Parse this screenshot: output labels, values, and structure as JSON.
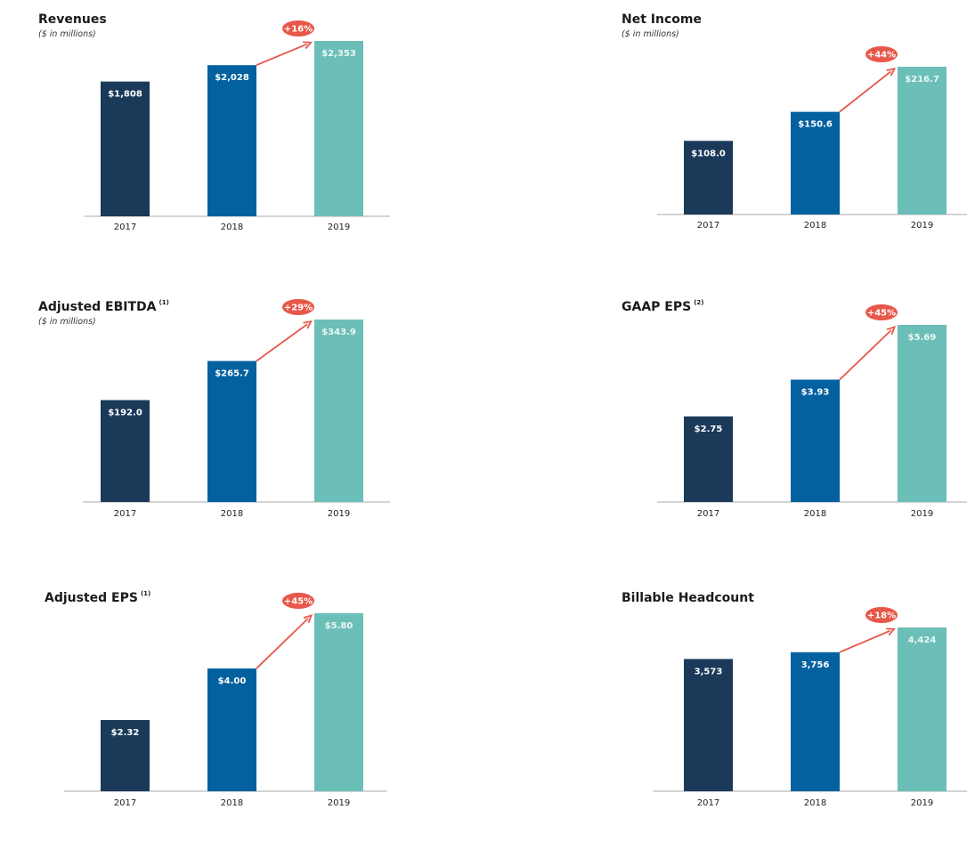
{
  "colors": {
    "y2017": "#1b3a5a",
    "y2018": "#03619f",
    "y2019": "#6cbfb8",
    "arrow": "#e8584a",
    "axis": "#a9a9a9"
  },
  "chart_data": [
    {
      "type": "bar",
      "title": "Revenues",
      "footnote": "",
      "subtitle": "($ in millions)",
      "categories": [
        "2017",
        "2018",
        "2019"
      ],
      "values": [
        1808,
        2028,
        2353
      ],
      "value_labels": [
        "$1,808",
        "$2,028",
        "$2,353"
      ],
      "growth_label": "+16%",
      "ylim": [
        0,
        2353
      ],
      "grid": false
    },
    {
      "type": "bar",
      "title": "Net Income",
      "footnote": "",
      "subtitle": "($ in millions)",
      "categories": [
        "2017",
        "2018",
        "2019"
      ],
      "values": [
        108.0,
        150.6,
        216.7
      ],
      "value_labels": [
        "$108.0",
        "$150.6",
        "$216.7"
      ],
      "growth_label": "+44%",
      "ylim": [
        0,
        216.7
      ],
      "grid": false
    },
    {
      "type": "bar",
      "title": "Adjusted EBITDA",
      "footnote": "(1)",
      "subtitle": "($ in millions)",
      "categories": [
        "2017",
        "2018",
        "2019"
      ],
      "values": [
        192.0,
        265.7,
        343.9
      ],
      "value_labels": [
        "$192.0",
        "$265.7",
        "$343.9"
      ],
      "growth_label": "+29%",
      "ylim": [
        0,
        343.9
      ],
      "grid": false
    },
    {
      "type": "bar",
      "title": "GAAP EPS",
      "footnote": "(2)",
      "subtitle": "",
      "categories": [
        "2017",
        "2018",
        "2019"
      ],
      "values": [
        2.75,
        3.93,
        5.69
      ],
      "value_labels": [
        "$2.75",
        "$3.93",
        "$5.69"
      ],
      "growth_label": "+45%",
      "ylim": [
        0,
        5.69
      ],
      "grid": false
    },
    {
      "type": "bar",
      "title": "Adjusted EPS",
      "footnote": "(1)",
      "subtitle": "",
      "categories": [
        "2017",
        "2018",
        "2019"
      ],
      "values": [
        2.32,
        4.0,
        5.8
      ],
      "value_labels": [
        "$2.32",
        "$4.00",
        "$5.80"
      ],
      "growth_label": "+45%",
      "ylim": [
        0,
        5.8
      ],
      "grid": false
    },
    {
      "type": "bar",
      "title": "Billable Headcount",
      "footnote": "",
      "subtitle": "",
      "categories": [
        "2017",
        "2018",
        "2019"
      ],
      "values": [
        3573,
        3756,
        4424
      ],
      "value_labels": [
        "3,573",
        "3,756",
        "4,424"
      ],
      "growth_label": "+18%",
      "ylim": [
        0,
        4424
      ],
      "grid": false
    }
  ]
}
